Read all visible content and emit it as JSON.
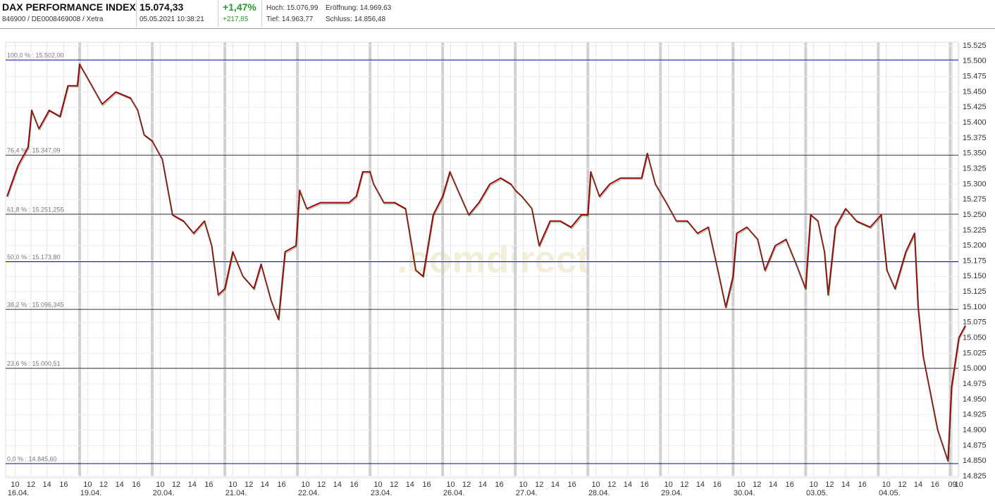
{
  "header": {
    "title": "DAX PERFORMANCE INDEX",
    "subtitle": "846900 / DE0008469008 / Xetra",
    "price": "15.074,33",
    "datetime": "05.05.2021 10:38:21",
    "change_pct": "+1,47%",
    "change_abs": "+217,85",
    "high": "Hoch: 15.076,99",
    "open": "Eröffnung: 14.969,63",
    "low": "Tief: 14.963,77",
    "close": "Schluss: 14.856,48"
  },
  "chart_data": {
    "type": "line",
    "watermark": ".comdirect",
    "series": [
      {
        "color": "#a00010",
        "x": [
          0,
          0.15,
          0.29,
          0.34,
          0.44,
          0.58,
          0.73,
          0.84,
          0.97,
          1.0,
          1.12,
          1.31,
          1.5,
          1.7,
          1.8,
          1.89,
          2.0,
          2.14,
          2.28,
          2.43,
          2.57,
          2.72,
          2.82,
          2.91,
          3.0,
          3.11,
          3.25,
          3.4,
          3.5,
          3.64,
          3.74,
          3.83,
          3.98,
          4.03,
          4.13,
          4.32,
          4.51,
          4.71,
          4.81,
          4.9,
          5.0,
          5.05,
          5.19,
          5.34,
          5.49,
          5.63,
          5.73,
          5.87,
          6.0,
          6.1,
          6.21,
          6.36,
          6.5,
          6.65,
          6.8,
          6.94,
          7.0,
          7.09,
          7.23,
          7.33,
          7.48,
          7.62,
          7.77,
          7.91,
          8.0,
          8.04,
          8.16,
          8.3,
          8.45,
          8.59,
          8.74,
          8.82,
          8.93,
          9.08,
          9.22,
          9.37,
          9.51,
          9.66,
          9.81,
          9.9,
          10.0,
          10.05,
          10.19,
          10.34,
          10.44,
          10.58,
          10.73,
          10.87,
          11.0,
          11.07,
          11.17,
          11.26,
          11.31,
          11.41,
          11.55,
          11.7,
          11.89,
          12.04,
          12.12,
          12.23,
          12.38,
          12.5,
          12.55,
          12.62,
          12.72,
          12.82,
          12.96,
          13.01,
          13.11,
          13.2
        ],
        "values": [
          15280,
          15330,
          15360,
          15420,
          15390,
          15420,
          15410,
          15460,
          15460,
          15495,
          15470,
          15430,
          15450,
          15440,
          15420,
          15380,
          15370,
          15340,
          15250,
          15240,
          15220,
          15240,
          15200,
          15120,
          15130,
          15190,
          15150,
          15130,
          15170,
          15110,
          15080,
          15190,
          15200,
          15290,
          15260,
          15270,
          15270,
          15270,
          15280,
          15320,
          15320,
          15300,
          15270,
          15270,
          15260,
          15160,
          15150,
          15250,
          15280,
          15320,
          15290,
          15250,
          15270,
          15300,
          15310,
          15300,
          15290,
          15280,
          15260,
          15200,
          15240,
          15240,
          15230,
          15250,
          15250,
          15320,
          15280,
          15300,
          15310,
          15310,
          15310,
          15350,
          15300,
          15270,
          15240,
          15240,
          15220,
          15230,
          15150,
          15100,
          15150,
          15220,
          15230,
          15210,
          15160,
          15200,
          15210,
          15170,
          15130,
          15250,
          15240,
          15190,
          15120,
          15230,
          15260,
          15240,
          15230,
          15250,
          15160,
          15130,
          15190,
          15220,
          15100,
          15020,
          14960,
          14900,
          14850,
          14970,
          15050,
          15070
        ]
      }
    ],
    "xlim": [
      0,
      13.2
    ],
    "ylim": [
      14825,
      15525
    ],
    "yticks": [
      {
        "value": 14825,
        "label": "14.825"
      },
      {
        "value": 14850,
        "label": "14.850"
      },
      {
        "value": 14875,
        "label": "14.875"
      },
      {
        "value": 14900,
        "label": "14.900"
      },
      {
        "value": 14925,
        "label": "14.925"
      },
      {
        "value": 14950,
        "label": "14.950"
      },
      {
        "value": 14975,
        "label": "14.975"
      },
      {
        "value": 15000,
        "label": "15.000"
      },
      {
        "value": 15025,
        "label": "15.025"
      },
      {
        "value": 15050,
        "label": "15.050"
      },
      {
        "value": 15075,
        "label": "15.075"
      },
      {
        "value": 15100,
        "label": "15.100"
      },
      {
        "value": 15125,
        "label": "15.125"
      },
      {
        "value": 15150,
        "label": "15.150"
      },
      {
        "value": 15175,
        "label": "15.175"
      },
      {
        "value": 15200,
        "label": "15.200"
      },
      {
        "value": 15225,
        "label": "15.225"
      },
      {
        "value": 15250,
        "label": "15.250"
      },
      {
        "value": 15275,
        "label": "15.275"
      },
      {
        "value": 15300,
        "label": "15.300"
      },
      {
        "value": 15325,
        "label": "15.325"
      },
      {
        "value": 15350,
        "label": "15.350"
      },
      {
        "value": 15375,
        "label": "15.375"
      },
      {
        "value": 15400,
        "label": "15.400"
      },
      {
        "value": 15425,
        "label": "15.425"
      },
      {
        "value": 15450,
        "label": "15.450"
      },
      {
        "value": 15475,
        "label": "15.475"
      },
      {
        "value": 15500,
        "label": "15.500"
      },
      {
        "value": 15525,
        "label": "15.525"
      }
    ],
    "xticks": [
      {
        "value": 0.11,
        "label": "10"
      },
      {
        "value": 0.33,
        "label": "12"
      },
      {
        "value": 0.55,
        "label": "14"
      },
      {
        "value": 0.78,
        "label": "16"
      },
      {
        "value": 1.11,
        "label": "10"
      },
      {
        "value": 1.33,
        "label": "12"
      },
      {
        "value": 1.55,
        "label": "14"
      },
      {
        "value": 1.78,
        "label": "16"
      },
      {
        "value": 2.11,
        "label": "10"
      },
      {
        "value": 2.33,
        "label": "12"
      },
      {
        "value": 2.55,
        "label": "14"
      },
      {
        "value": 2.78,
        "label": "16"
      },
      {
        "value": 3.11,
        "label": "10"
      },
      {
        "value": 3.33,
        "label": "12"
      },
      {
        "value": 3.55,
        "label": "14"
      },
      {
        "value": 3.78,
        "label": "16"
      },
      {
        "value": 4.11,
        "label": "10"
      },
      {
        "value": 4.33,
        "label": "12"
      },
      {
        "value": 4.55,
        "label": "14"
      },
      {
        "value": 4.78,
        "label": "16"
      },
      {
        "value": 5.11,
        "label": "10"
      },
      {
        "value": 5.33,
        "label": "12"
      },
      {
        "value": 5.55,
        "label": "14"
      },
      {
        "value": 5.78,
        "label": "16"
      },
      {
        "value": 6.11,
        "label": "10"
      },
      {
        "value": 6.33,
        "label": "12"
      },
      {
        "value": 6.55,
        "label": "14"
      },
      {
        "value": 6.78,
        "label": "16"
      },
      {
        "value": 7.11,
        "label": "10"
      },
      {
        "value": 7.33,
        "label": "12"
      },
      {
        "value": 7.55,
        "label": "14"
      },
      {
        "value": 7.78,
        "label": "16"
      },
      {
        "value": 8.11,
        "label": "10"
      },
      {
        "value": 8.33,
        "label": "12"
      },
      {
        "value": 8.55,
        "label": "14"
      },
      {
        "value": 8.78,
        "label": "16"
      },
      {
        "value": 9.11,
        "label": "10"
      },
      {
        "value": 9.33,
        "label": "12"
      },
      {
        "value": 9.55,
        "label": "14"
      },
      {
        "value": 9.78,
        "label": "16"
      },
      {
        "value": 10.11,
        "label": "10"
      },
      {
        "value": 10.33,
        "label": "12"
      },
      {
        "value": 10.55,
        "label": "14"
      },
      {
        "value": 10.78,
        "label": "16"
      },
      {
        "value": 11.11,
        "label": "10"
      },
      {
        "value": 11.33,
        "label": "12"
      },
      {
        "value": 11.55,
        "label": "14"
      },
      {
        "value": 11.78,
        "label": "16"
      },
      {
        "value": 12.11,
        "label": "10"
      },
      {
        "value": 12.33,
        "label": "12"
      },
      {
        "value": 12.55,
        "label": "14"
      },
      {
        "value": 12.78,
        "label": "16"
      },
      {
        "value": 13.02,
        "label": "09"
      },
      {
        "value": 13.11,
        "label": "10"
      }
    ],
    "day_labels": [
      {
        "value": 0,
        "label": "16.04."
      },
      {
        "value": 1,
        "label": "19.04."
      },
      {
        "value": 2,
        "label": "20.04."
      },
      {
        "value": 3,
        "label": "21.04."
      },
      {
        "value": 4,
        "label": "22.04."
      },
      {
        "value": 5,
        "label": "23.04."
      },
      {
        "value": 6,
        "label": "26.04."
      },
      {
        "value": 7,
        "label": "27.04."
      },
      {
        "value": 8,
        "label": "28.04."
      },
      {
        "value": 9,
        "label": "29.04."
      },
      {
        "value": 10,
        "label": "30.04."
      },
      {
        "value": 11,
        "label": "03.05."
      },
      {
        "value": 12,
        "label": "04.05."
      }
    ],
    "fib_levels": [
      {
        "value": 15502,
        "label": "100,0 % : 15.502,00",
        "color": "#0000cc"
      },
      {
        "value": 15347.09,
        "label": "76,4 % : 15.347,09",
        "color": "#333333"
      },
      {
        "value": 15251.255,
        "label": "61,8 % : 15.251,255",
        "color": "#333333"
      },
      {
        "value": 15173.8,
        "label": "50,0 % : 15.173,80",
        "color": "#0000cc"
      },
      {
        "value": 15096.345,
        "label": "38,2 % : 15.096,345",
        "color": "#333333"
      },
      {
        "value": 15000.51,
        "label": "23,6 % : 15.000,51",
        "color": "#333333"
      },
      {
        "value": 14845.6,
        "label": "0,0 % : 14.845,60",
        "color": "#0000cc"
      }
    ]
  }
}
